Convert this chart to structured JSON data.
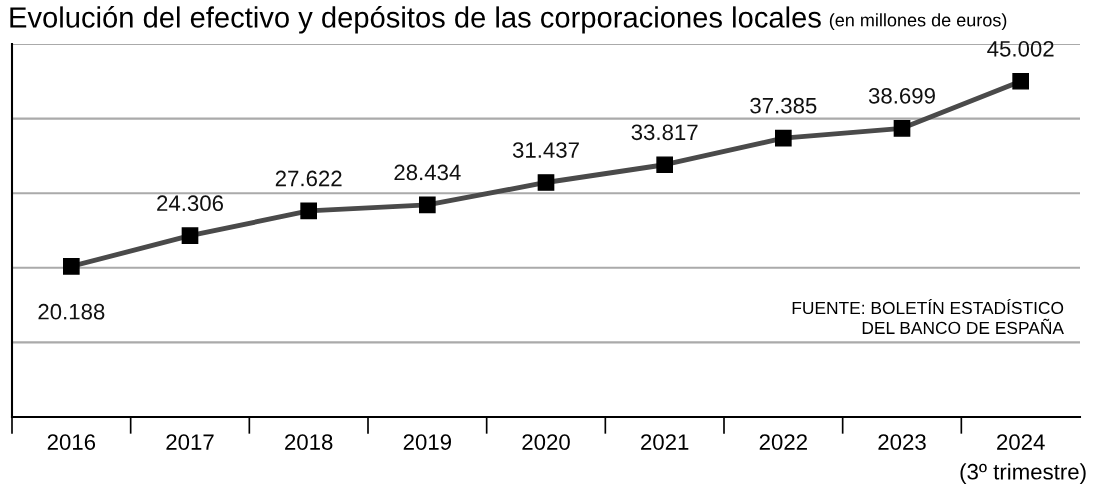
{
  "chart_data": {
    "type": "line",
    "title": "Evolución del efectivo y depósitos de las corporaciones locales",
    "subtitle": "(en millones de euros)",
    "categories": [
      "2016",
      "2017",
      "2018",
      "2019",
      "2020",
      "2021",
      "2022",
      "2023",
      "2024"
    ],
    "series": [
      {
        "color": "#4a4a4a",
        "values": [
          20188,
          24306,
          27622,
          28434,
          31437,
          33817,
          37385,
          38699,
          45002
        ],
        "value_labels": [
          "20.188",
          "24.306",
          "27.622",
          "28.434",
          "31.437",
          "33.817",
          "37.385",
          "38.699",
          "45.002"
        ]
      }
    ],
    "ylim": [
      0,
      50000
    ],
    "yticks": [
      {
        "value": 0,
        "label": null
      },
      {
        "value": 10000,
        "label": null
      },
      {
        "value": 20000,
        "label": null
      },
      {
        "value": 30000,
        "label": null
      },
      {
        "value": 40000,
        "label": null
      },
      {
        "value": 50000,
        "label": null
      }
    ],
    "tick_labels": "x",
    "grid": "y",
    "marker": "square",
    "line_style": "solid",
    "legend": false,
    "annotations": [
      "(3º trimestre)",
      "FUENTE: BOLETÍN ESTADÍSTICO\nDEL BANCO DE ESPAÑA"
    ]
  }
}
